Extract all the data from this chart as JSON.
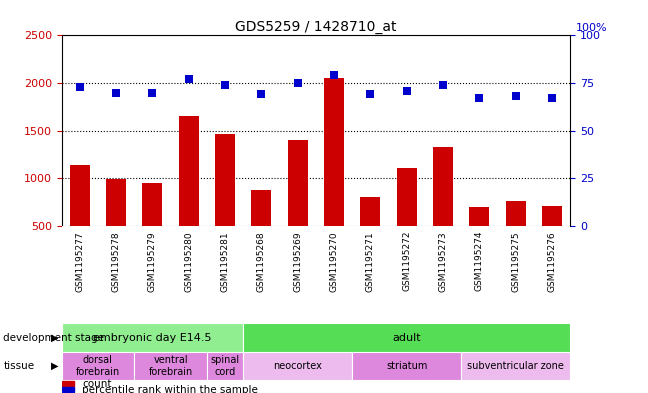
{
  "title": "GDS5259 / 1428710_at",
  "samples": [
    "GSM1195277",
    "GSM1195278",
    "GSM1195279",
    "GSM1195280",
    "GSM1195281",
    "GSM1195268",
    "GSM1195269",
    "GSM1195270",
    "GSM1195271",
    "GSM1195272",
    "GSM1195273",
    "GSM1195274",
    "GSM1195275",
    "GSM1195276"
  ],
  "counts": [
    1140,
    990,
    950,
    1650,
    1460,
    880,
    1400,
    2050,
    800,
    1110,
    1330,
    700,
    760,
    710
  ],
  "percentiles": [
    73,
    70,
    70,
    77,
    74,
    69,
    75,
    79,
    69,
    71,
    74,
    67,
    68,
    67
  ],
  "ylim_left": [
    500,
    2500
  ],
  "ylim_right": [
    0,
    100
  ],
  "yticks_left": [
    500,
    1000,
    1500,
    2000,
    2500
  ],
  "yticks_right": [
    0,
    25,
    50,
    75,
    100
  ],
  "bar_color": "#cc0000",
  "dot_color": "#0000cc",
  "dot_size": 40,
  "dev_stage_groups": [
    {
      "label": "embryonic day E14.5",
      "start": 0,
      "end": 5,
      "color": "#90ee90"
    },
    {
      "label": "adult",
      "start": 5,
      "end": 14,
      "color": "#55dd55"
    }
  ],
  "tissue_groups": [
    {
      "label": "dorsal\nforebrain",
      "start": 0,
      "end": 2,
      "color": "#dd88dd"
    },
    {
      "label": "ventral\nforebrain",
      "start": 2,
      "end": 4,
      "color": "#dd88dd"
    },
    {
      "label": "spinal\ncord",
      "start": 4,
      "end": 5,
      "color": "#dd88dd"
    },
    {
      "label": "neocortex",
      "start": 5,
      "end": 8,
      "color": "#eebbee"
    },
    {
      "label": "striatum",
      "start": 8,
      "end": 11,
      "color": "#dd88dd"
    },
    {
      "label": "subventricular zone",
      "start": 11,
      "end": 14,
      "color": "#eebbee"
    }
  ],
  "xticklabel_bg": "#c8c8c8",
  "left_axis_color": "#cc0000",
  "right_axis_color": "#0000cc",
  "right_axis_label": "100%"
}
